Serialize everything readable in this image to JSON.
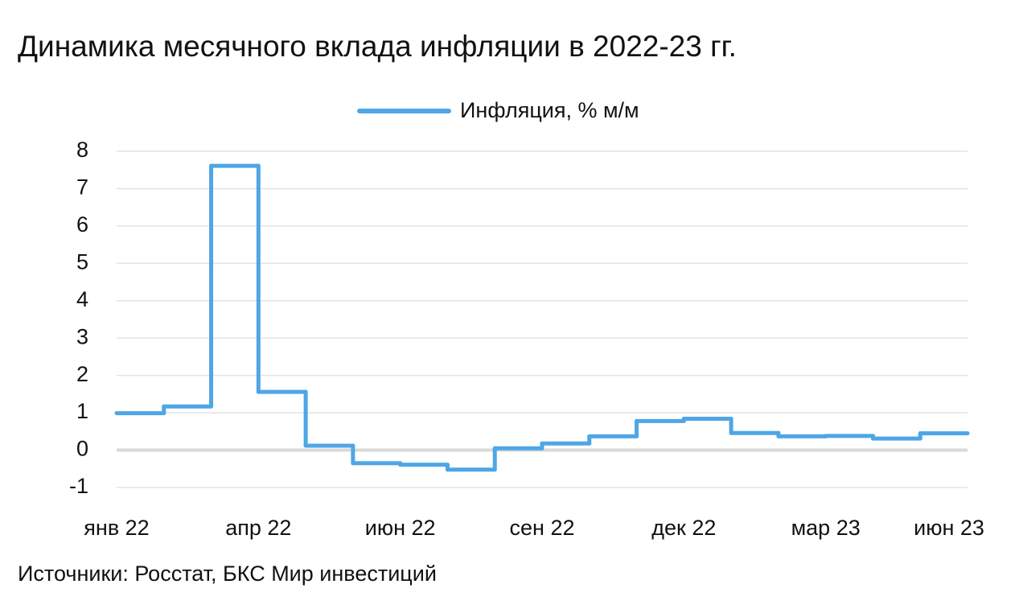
{
  "chart_data": {
    "type": "step",
    "title": "Динамика месячного вклада инфляции в 2022-23 гг.",
    "source": "Источники: Росстат, БКС Мир инвестиций",
    "categories": [
      "янв 22",
      null,
      null,
      "апр 22",
      null,
      null,
      "июн 22",
      null,
      null,
      "сен 22",
      null,
      null,
      "дек 22",
      null,
      null,
      "мар 23",
      null,
      "июн 23"
    ],
    "series": [
      {
        "name": "Инфляция, % м/м",
        "color": "#4ea6e6",
        "values": [
          0.99,
          1.17,
          7.61,
          1.56,
          0.12,
          -0.35,
          -0.39,
          -0.52,
          0.05,
          0.18,
          0.37,
          0.78,
          0.84,
          0.46,
          0.37,
          0.38,
          0.31,
          0.45
        ]
      }
    ],
    "ylim": [
      -1,
      8
    ],
    "yticks": [
      -1,
      0,
      1,
      2,
      3,
      4,
      5,
      6,
      7,
      8
    ],
    "grid": true,
    "legend": "top"
  }
}
